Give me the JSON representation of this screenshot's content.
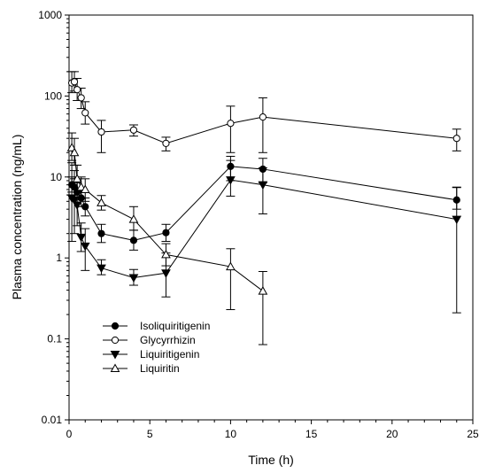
{
  "chart_data": {
    "type": "line",
    "xlabel": "Time (h)",
    "ylabel": "Plasma concentration (ng/mL)",
    "xlim": [
      0,
      25
    ],
    "ylim": [
      0.01,
      1000
    ],
    "yscale": "log",
    "xticks": [
      "0",
      "5",
      "10",
      "15",
      "20",
      "25"
    ],
    "yticks": [
      "0.01",
      "0.1",
      "1",
      "10",
      "100",
      "1000"
    ],
    "legend_position": "lower-left",
    "grid": false,
    "series": [
      {
        "name": "Isoliquiritigenin",
        "marker": "circle-filled",
        "x": [
          0.17,
          0.33,
          0.5,
          0.75,
          1,
          2,
          4,
          6,
          10,
          12,
          24
        ],
        "y": [
          8,
          7.5,
          6.5,
          5.5,
          4.3,
          2.0,
          1.65,
          2.05,
          13.5,
          12.5,
          5.2
        ],
        "err_low": [
          6.5,
          6.0,
          5.2,
          4.3,
          3.3,
          1.55,
          1.25,
          1.6,
          9.0,
          8.5,
          4.0
        ],
        "err_high": [
          10,
          9.5,
          8.5,
          7.0,
          5.5,
          2.6,
          2.2,
          2.6,
          18,
          17,
          7.4
        ]
      },
      {
        "name": "Glycyrrhizin",
        "marker": "circle-open",
        "x": [
          0.17,
          0.33,
          0.5,
          0.75,
          1,
          2,
          4,
          6,
          10,
          12,
          24
        ],
        "y": [
          145,
          150,
          120,
          95,
          62,
          36,
          38,
          26,
          46,
          55,
          30
        ],
        "err_low": [
          110,
          115,
          88,
          70,
          45,
          20,
          32,
          21,
          20,
          20,
          21
        ],
        "err_high": [
          200,
          200,
          165,
          125,
          85,
          50,
          44,
          31,
          75,
          95,
          39
        ]
      },
      {
        "name": "Liquiritigenin",
        "marker": "triangle-down-filled",
        "x": [
          0.17,
          0.33,
          0.5,
          0.75,
          1,
          2,
          4,
          6,
          10,
          12,
          24
        ],
        "y": [
          5.5,
          5.2,
          4.5,
          1.8,
          1.4,
          0.75,
          0.57,
          0.65,
          9.2,
          8.0,
          3.0
        ],
        "err_low": [
          1.6,
          2.0,
          2.5,
          1.2,
          0.7,
          0.62,
          0.46,
          0.33,
          5.8,
          3.5,
          0.21
        ],
        "err_high": [
          15,
          12,
          9.5,
          2.7,
          2.3,
          0.95,
          0.72,
          1.15,
          16,
          13,
          7.5
        ]
      },
      {
        "name": "Liquiritin",
        "marker": "triangle-up-open",
        "x": [
          0.17,
          0.33,
          0.5,
          0.75,
          1,
          2,
          4,
          6,
          10,
          12
        ],
        "y": [
          23,
          20,
          9.5,
          7.5,
          7.0,
          4.8,
          3.0,
          1.1,
          0.78,
          0.39
        ],
        "err_low": [
          16,
          14,
          6.5,
          5.5,
          5.0,
          3.9,
          2.2,
          0.8,
          0.23,
          0.085
        ],
        "err_high": [
          35,
          30,
          14,
          10,
          9.5,
          5.9,
          4.3,
          1.5,
          1.3,
          0.68
        ]
      }
    ]
  }
}
